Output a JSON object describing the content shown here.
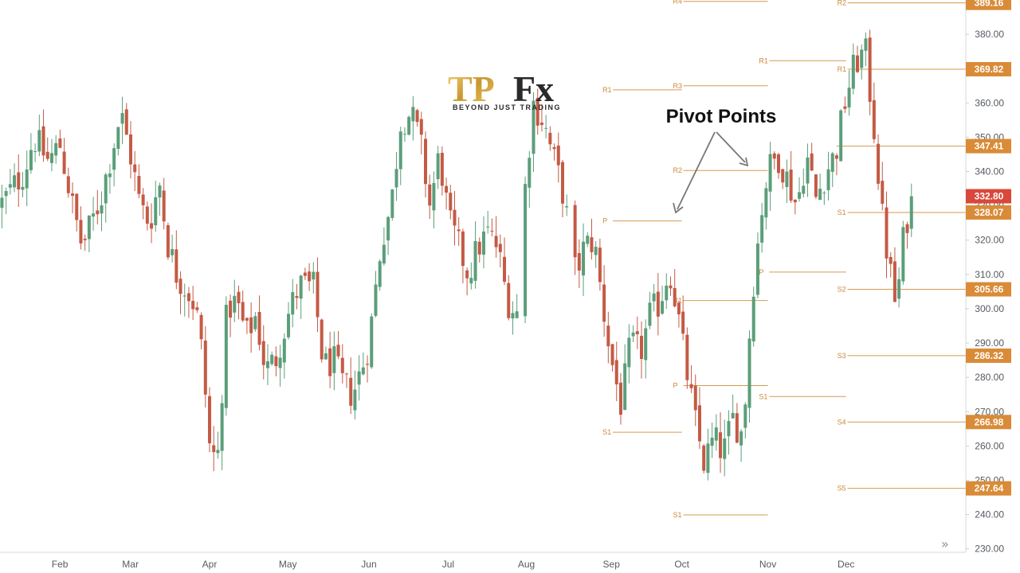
{
  "chart_data": {
    "type": "candlestick",
    "y_range": [
      229,
      390
    ],
    "x_range": [
      0,
      100
    ],
    "y_ticks": [
      230,
      240,
      250,
      260,
      270,
      280,
      290,
      300,
      310,
      320,
      330,
      340,
      350,
      360,
      370,
      380
    ],
    "x_ticks": [
      {
        "label": "Feb",
        "t": 6.2
      },
      {
        "label": "Mar",
        "t": 13.5
      },
      {
        "label": "Apr",
        "t": 21.7
      },
      {
        "label": "May",
        "t": 29.8
      },
      {
        "label": "Jun",
        "t": 38.2
      },
      {
        "label": "Jul",
        "t": 46.4
      },
      {
        "label": "Aug",
        "t": 54.5
      },
      {
        "label": "Sep",
        "t": 63.3
      },
      {
        "label": "Oct",
        "t": 70.6
      },
      {
        "label": "Nov",
        "t": 79.5
      },
      {
        "label": "Dec",
        "t": 87.6
      }
    ],
    "up_color": "#5b9e7a",
    "down_color": "#c45a45",
    "pivot_color": "#d49a50",
    "price_tag_color": "#d98b37",
    "current_tag_color": "#d9483b",
    "price_labels": [
      {
        "value": 389.16,
        "label": "389.16"
      },
      {
        "value": 369.82,
        "label": "369.82"
      },
      {
        "value": 347.41,
        "label": "347.41"
      },
      {
        "value": 332.8,
        "label": "332.80",
        "current": true
      },
      {
        "value": 328.07,
        "label": "328.07"
      },
      {
        "value": 305.66,
        "label": "305.66"
      },
      {
        "value": 286.32,
        "label": "286.32"
      },
      {
        "value": 266.98,
        "label": "266.98"
      },
      {
        "value": 247.64,
        "label": "247.64"
      }
    ],
    "pivot_lines": [
      {
        "label": "R1",
        "t0": 62.3,
        "t1": 70.6,
        "y": 363.8
      },
      {
        "label": "P",
        "t0": 62.3,
        "t1": 70.6,
        "y": 325.6
      },
      {
        "label": "S1",
        "t0": 62.3,
        "t1": 70.6,
        "y": 264.0
      },
      {
        "label": "R4",
        "t0": 69.6,
        "t1": 79.5,
        "y": 389.6
      },
      {
        "label": "R3",
        "t0": 69.6,
        "t1": 79.5,
        "y": 365.0
      },
      {
        "label": "R2",
        "t0": 69.6,
        "t1": 79.5,
        "y": 340.3
      },
      {
        "label": "R1",
        "t0": 69.6,
        "t1": 79.5,
        "y": 302.4
      },
      {
        "label": "P",
        "t0": 69.6,
        "t1": 79.5,
        "y": 277.6
      },
      {
        "label": "S1",
        "t0": 69.6,
        "t1": 79.5,
        "y": 239.9
      },
      {
        "label": "R1",
        "t0": 78.5,
        "t1": 87.6,
        "y": 372.3
      },
      {
        "label": "P",
        "t0": 78.5,
        "t1": 87.6,
        "y": 310.7
      },
      {
        "label": "S1",
        "t0": 78.5,
        "t1": 87.6,
        "y": 274.4
      },
      {
        "label": "R2",
        "t0": 86.6,
        "t1": 100,
        "y": 389.16
      },
      {
        "label": "R1",
        "t0": 86.6,
        "t1": 100,
        "y": 369.82
      },
      {
        "label": "",
        "t0": 86.6,
        "t1": 100,
        "y": 347.41
      },
      {
        "label": "S1",
        "t0": 86.6,
        "t1": 100,
        "y": 328.07
      },
      {
        "label": "S2",
        "t0": 86.6,
        "t1": 100,
        "y": 305.66
      },
      {
        "label": "S3",
        "t0": 86.6,
        "t1": 100,
        "y": 286.32
      },
      {
        "label": "S4",
        "t0": 86.6,
        "t1": 100,
        "y": 266.98
      },
      {
        "label": "S5",
        "t0": 86.6,
        "t1": 100,
        "y": 247.64
      }
    ],
    "price_path": [
      [
        0,
        330
      ],
      [
        2.5,
        340
      ],
      [
        3.5,
        350
      ],
      [
        5,
        343
      ],
      [
        6.2,
        348
      ],
      [
        7.5,
        330
      ],
      [
        8.5,
        318
      ],
      [
        9.5,
        325
      ],
      [
        10.5,
        333
      ],
      [
        11.5,
        345
      ],
      [
        12.5,
        357
      ],
      [
        13.5,
        345
      ],
      [
        14.5,
        330
      ],
      [
        15.5,
        325
      ],
      [
        16.5,
        337
      ],
      [
        17.3,
        320
      ],
      [
        18.3,
        310
      ],
      [
        19.5,
        305
      ],
      [
        20.3,
        300
      ],
      [
        21,
        285
      ],
      [
        21.7,
        260
      ],
      [
        22.5,
        255
      ],
      [
        23.5,
        300
      ],
      [
        24.5,
        302
      ],
      [
        25.5,
        292
      ],
      [
        26.5,
        298
      ],
      [
        27.5,
        282
      ],
      [
        28.5,
        285
      ],
      [
        29.8,
        298
      ],
      [
        31,
        307
      ],
      [
        32.5,
        306
      ],
      [
        33.5,
        283
      ],
      [
        34.5,
        285
      ],
      [
        35.5,
        278
      ],
      [
        36.5,
        275
      ],
      [
        37.5,
        283
      ],
      [
        38.2,
        290
      ],
      [
        39.5,
        320
      ],
      [
        40.5,
        330
      ],
      [
        41.5,
        355
      ],
      [
        42.5,
        357
      ],
      [
        43.5,
        349
      ],
      [
        44.5,
        330
      ],
      [
        45.5,
        345
      ],
      [
        46.5,
        325
      ],
      [
        47.5,
        318
      ],
      [
        48.5,
        310
      ],
      [
        49.5,
        318
      ],
      [
        50.5,
        322
      ],
      [
        51.5,
        318
      ],
      [
        52.5,
        303
      ],
      [
        53.5,
        298
      ],
      [
        54.2,
        330
      ],
      [
        55.2,
        360
      ],
      [
        56.2,
        355
      ],
      [
        57.2,
        345
      ],
      [
        58.2,
        335
      ],
      [
        58.8,
        325
      ],
      [
        59.6,
        310
      ],
      [
        60.5,
        318
      ],
      [
        61.5,
        320
      ],
      [
        62.3,
        303
      ],
      [
        63.3,
        285
      ],
      [
        64.3,
        272
      ],
      [
        65.3,
        290
      ],
      [
        66.3,
        287
      ],
      [
        67.3,
        298
      ],
      [
        68.3,
        302
      ],
      [
        69.3,
        312
      ],
      [
        70.1,
        300
      ],
      [
        70.9,
        285
      ],
      [
        71.9,
        268
      ],
      [
        72.9,
        255
      ],
      [
        73.9,
        262
      ],
      [
        74.9,
        258
      ],
      [
        75.9,
        268
      ],
      [
        76.9,
        263
      ],
      [
        77.9,
        305
      ],
      [
        78.9,
        330
      ],
      [
        79.5,
        340
      ],
      [
        80.5,
        345
      ],
      [
        81.5,
        338
      ],
      [
        82.5,
        330
      ],
      [
        83.5,
        345
      ],
      [
        84.5,
        332
      ],
      [
        85.5,
        340
      ],
      [
        86.5,
        345
      ],
      [
        87.6,
        362
      ],
      [
        88.6,
        372
      ],
      [
        89.6,
        375
      ],
      [
        90.6,
        350
      ],
      [
        91.4,
        325
      ],
      [
        92.2,
        310
      ],
      [
        92.8,
        300
      ],
      [
        93.6,
        322
      ],
      [
        94.4,
        333
      ]
    ],
    "last_close": 332.8,
    "annotation": {
      "text": "Pivot Points",
      "x_t": 70.5,
      "y": 351.5
    }
  },
  "logo": {
    "mark_tp": "TP",
    "mark_fx": "Fx",
    "tagline": "BEYOND JUST TRADING"
  },
  "nav": {
    "scroll_icon": "»"
  }
}
